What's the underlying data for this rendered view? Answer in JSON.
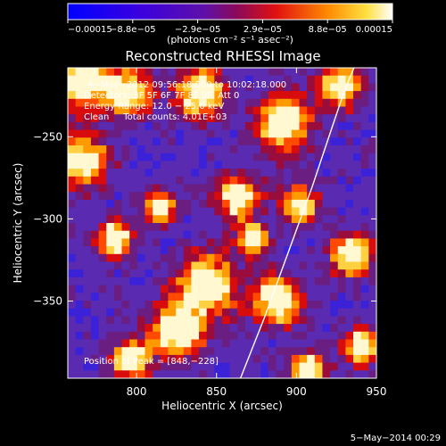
{
  "chart_data": {
    "type": "heatmap",
    "title": "Reconstructed RHESSI Image",
    "xlabel": "Heliocentric X (arcsec)",
    "ylabel": "Heliocentric Y (arcsec)",
    "xlim": [
      757,
      950
    ],
    "ylim": [
      -397,
      -208
    ],
    "xticks": [
      800,
      850,
      900,
      950
    ],
    "yticks": [
      -250,
      -300,
      -350
    ],
    "xtick_labels": [
      "800",
      "850",
      "900",
      "950"
    ],
    "ytick_labels": [
      "−250",
      "−300",
      "−350"
    ],
    "colorbar": {
      "min": -0.00015,
      "max": 0.00015,
      "tick_labels": [
        "−0.00015",
        "−8.8e−05",
        "−2.9e−05",
        "2.9e−05",
        "8.8e−05",
        "0.00015"
      ],
      "unit_label": "(photons cm⁻² s⁻¹ asec⁻²)"
    },
    "annotations": [
      "4−May−2012 09:56:18.000 to 10:02:18.000",
      "Detectors: 3F 5F 6F 7F 8F 9F, Att 0",
      "Energy Range: 12.0 − 25.0 keV",
      "Clean     Total counts: 4.01E+03"
    ],
    "peak_label": "Position of Peak = [848,−228]",
    "limb_curve": [
      [
        865,
        -397
      ],
      [
        880,
        -360
      ],
      [
        895,
        -320
      ],
      [
        910,
        -280
      ],
      [
        922,
        -245
      ],
      [
        930,
        -222
      ],
      [
        936,
        -208
      ]
    ]
  },
  "footer": {
    "timestamp": "5−May−2014 00:29"
  },
  "colors": {
    "background": "#000000",
    "text": "#ffffff",
    "limb": "#ffffff"
  }
}
